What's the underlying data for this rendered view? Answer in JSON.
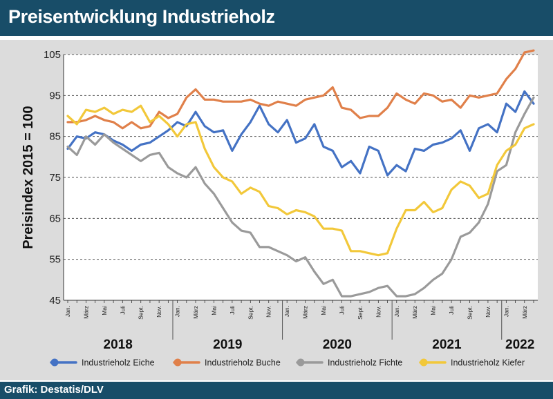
{
  "header": {
    "title": "Preisentwicklung Industrieholz"
  },
  "footer": {
    "credit": "Grafik: Destatis/DLV"
  },
  "chart_data": {
    "type": "line",
    "title": "Preisentwicklung Industrieholz",
    "ylabel": "Preisindex 2015 = 100",
    "ylim": [
      45,
      105
    ],
    "yticks": [
      45,
      55,
      65,
      75,
      85,
      95,
      105
    ],
    "grid": "horizontal dashed",
    "legend": "bottom",
    "x_tick_labels": [
      "Jan.",
      "März",
      "Mai",
      "Juli",
      "Sept.",
      "Nov.",
      "Jan.",
      "März",
      "Mai",
      "Juli",
      "Sept.",
      "Nov.",
      "Jan.",
      "März",
      "Mai",
      "Juli",
      "Sept.",
      "Nov.",
      "Jan.",
      "März",
      "Mai",
      "Juli",
      "Sept.",
      "Nov.",
      "Jan.",
      "März"
    ],
    "years": [
      "2018",
      "2019",
      "2020",
      "2021",
      "2022"
    ],
    "series": [
      {
        "name": "Industrieholz Eiche",
        "color": "#4472c4",
        "values": [
          82,
          85,
          84.5,
          86,
          85.5,
          84,
          83,
          81.5,
          83,
          83.5,
          85,
          86.5,
          88.5,
          87.5,
          91,
          87.5,
          86,
          86.5,
          81.5,
          85.5,
          88.5,
          92.5,
          88,
          86,
          89,
          83.5,
          84.5,
          88,
          82.5,
          81.5,
          77.5,
          79,
          76,
          82.5,
          81.5,
          75.5,
          78,
          76.5,
          82,
          81.5,
          83,
          83.5,
          84.5,
          86.5,
          81.5,
          87,
          88,
          86,
          93,
          91,
          96,
          93
        ]
      },
      {
        "name": "Industrieholz Buche",
        "color": "#e0804a",
        "values": [
          88.5,
          88.5,
          89,
          90,
          89,
          88.5,
          87,
          88.5,
          87,
          87.5,
          91,
          89.5,
          90.5,
          94.5,
          96.5,
          94,
          94,
          93.5,
          93.5,
          93.5,
          94,
          93,
          92.5,
          93.5,
          93,
          92.5,
          94,
          94.5,
          95,
          97,
          92,
          91.5,
          89.5,
          90,
          90,
          92,
          95.5,
          94,
          93,
          95.5,
          95,
          93.5,
          94,
          92,
          95,
          94.5,
          95,
          95.5,
          99,
          101.5,
          105.5,
          106
        ]
      },
      {
        "name": "Industrieholz Fichte",
        "color": "#9a9a9a",
        "values": [
          82.5,
          80.5,
          85,
          83,
          85.5,
          83.5,
          82,
          80.5,
          79,
          80.5,
          81,
          77.5,
          76,
          75,
          77.5,
          73.5,
          71,
          67.5,
          64,
          62,
          61.5,
          58,
          58,
          57,
          56,
          54.5,
          55.5,
          52,
          49,
          50,
          46,
          46,
          46.5,
          47,
          48,
          48.5,
          46,
          46,
          46.5,
          48,
          50,
          51.5,
          55,
          60.5,
          61.5,
          64,
          68.5,
          76.5,
          78,
          86,
          90.5,
          94.5
        ]
      },
      {
        "name": "Industrieholz Kiefer",
        "color": "#f2c83a",
        "values": [
          90,
          88,
          91.5,
          91,
          92,
          90.5,
          91.5,
          91,
          92.5,
          88.5,
          90,
          88,
          85,
          88,
          88.5,
          82,
          77.5,
          75,
          74,
          71,
          72.5,
          71.5,
          68,
          67.5,
          66,
          67,
          66.5,
          65.5,
          62.5,
          62.5,
          62,
          57,
          57,
          56.5,
          56,
          56.5,
          62.5,
          67,
          67,
          69,
          66.5,
          67.5,
          72,
          74,
          73,
          70,
          71,
          78,
          81.5,
          83,
          87,
          88
        ]
      }
    ]
  }
}
